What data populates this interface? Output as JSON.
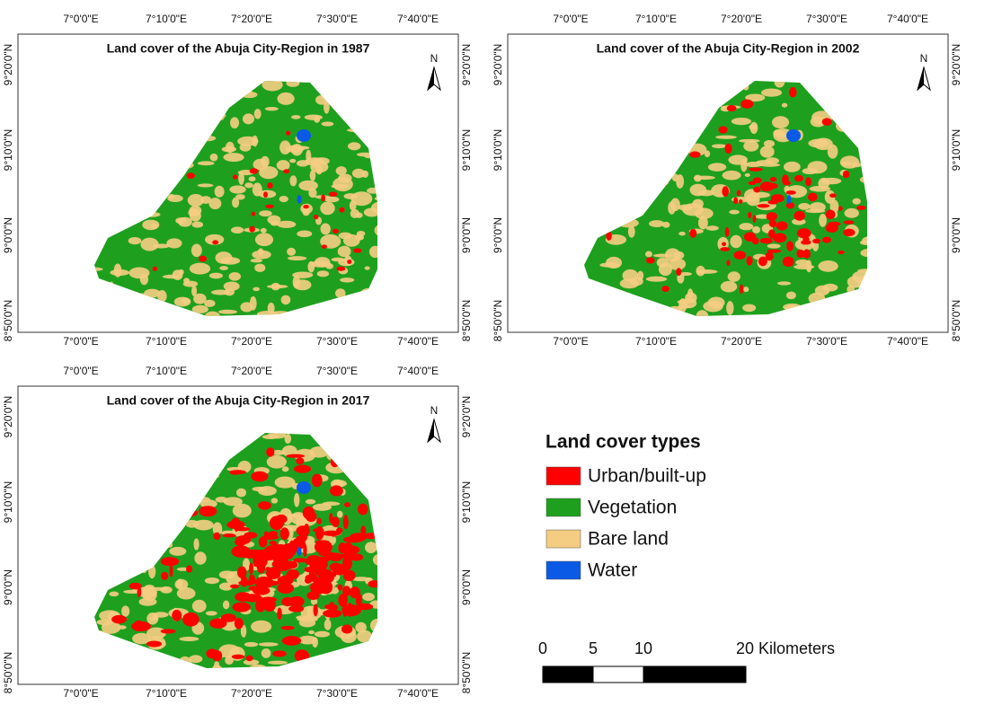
{
  "maps": [
    {
      "title": "Land cover of the Abuja City-Region in 1987",
      "lon_labels": [
        "7°0'0\"E",
        "7°10'0\"E",
        "7°20'0\"E",
        "7°30'0\"E",
        "7°40'0\"E"
      ],
      "lat_labels": [
        "9°20'0\"N",
        "9°10'0\"N",
        "9°0'0\"N",
        "8°50'0\"N"
      ]
    },
    {
      "title": "Land cover of the Abuja City-Region in 2002",
      "lon_labels": [
        "7°0'0\"E",
        "7°10'0\"E",
        "7°20'0\"E",
        "7°30'0\"E",
        "7°40'0\"E"
      ],
      "lat_labels": [
        "9°20'0\"N",
        "9°10'0\"N",
        "9°0'0\"N",
        "8°50'0\"N"
      ]
    },
    {
      "title": "Land cover of the Abuja City-Region in 2017",
      "lon_labels": [
        "7°0'0\"E",
        "7°10'0\"E",
        "7°20'0\"E",
        "7°30'0\"E",
        "7°40'0\"E"
      ],
      "lat_labels": [
        "9°20'0\"N",
        "9°10'0\"N",
        "9°0'0\"N",
        "8°50'0\"N"
      ]
    }
  ],
  "north": "N",
  "legend": {
    "title": "Land cover types",
    "items": [
      {
        "label": "Urban/built-up",
        "color": "#ff0000"
      },
      {
        "label": "Vegetation",
        "color": "#1ea01e"
      },
      {
        "label": "Bare land",
        "color": "#f5cd82"
      },
      {
        "label": "Water",
        "color": "#0a5ae6"
      }
    ]
  },
  "scale_bar": {
    "labels": [
      "0",
      "5",
      "10",
      "20 Kilometers"
    ]
  }
}
